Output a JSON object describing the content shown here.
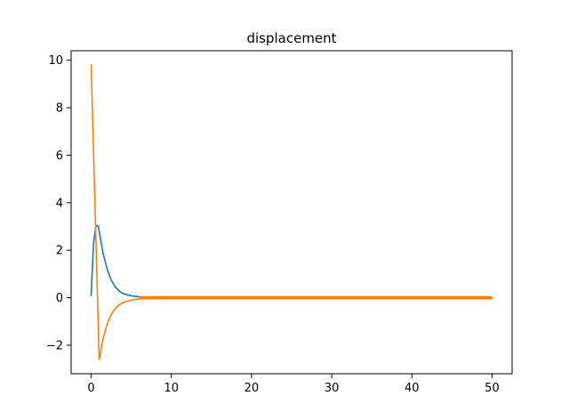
{
  "chart_data": {
    "type": "line",
    "title": "displacement",
    "xlabel": "",
    "ylabel": "",
    "xlim": [
      -2.5,
      52.5
    ],
    "ylim": [
      -3.2,
      10.4
    ],
    "xticks": [
      0,
      10,
      20,
      30,
      40,
      50
    ],
    "yticks": [
      -2,
      0,
      2,
      4,
      6,
      8,
      10
    ],
    "ytick_labels": [
      "−2",
      "0",
      "2",
      "4",
      "6",
      "8",
      "10"
    ],
    "grid": false,
    "legend": false,
    "series": [
      {
        "color": "#1f77b4",
        "x": [
          0,
          0.3,
          0.6,
          0.9,
          1.2,
          1.5,
          2,
          2.5,
          3,
          3.5,
          4,
          5,
          6,
          7,
          8,
          10,
          15,
          20,
          30,
          40,
          50
        ],
        "y": [
          0.1,
          2.3,
          3.05,
          3.0,
          2.4,
          1.85,
          1.2,
          0.75,
          0.45,
          0.28,
          0.17,
          0.08,
          0.04,
          0.02,
          0.01,
          0.0,
          0.0,
          0.0,
          0.0,
          0.0,
          0.0
        ]
      },
      {
        "color": "#ff7f0e",
        "oscillation_amplitude": 0.07,
        "x": [
          0,
          1,
          1.5,
          2,
          2.5,
          3,
          3.5,
          4,
          5,
          6,
          7,
          8,
          10,
          15,
          20,
          30,
          40,
          50
        ],
        "y": [
          9.8,
          -2.6,
          -1.7,
          -1.1,
          -0.7,
          -0.45,
          -0.3,
          -0.2,
          -0.1,
          -0.05,
          -0.02,
          -0.01,
          0.0,
          0.0,
          0.0,
          0.0,
          0.0,
          0.0
        ]
      }
    ]
  }
}
